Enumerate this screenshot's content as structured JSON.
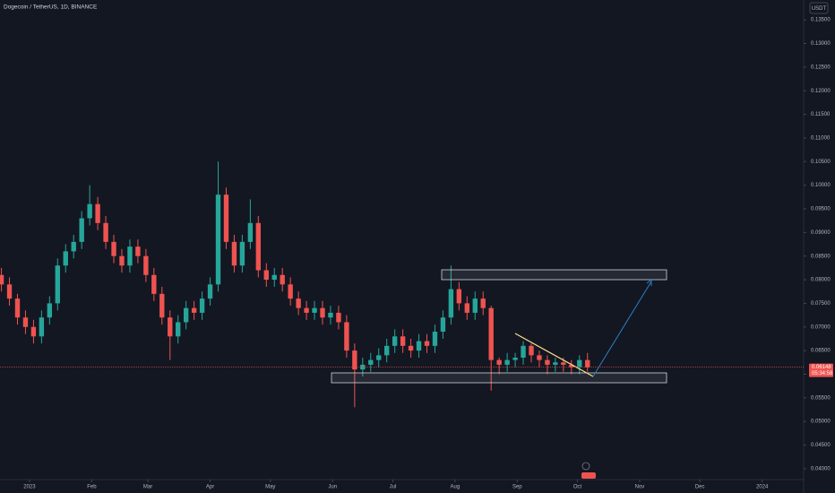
{
  "chart_data": {
    "type": "candlestick",
    "title": "Dogecoin / TetherUS, 1D, BINANCE",
    "currency": "USDT",
    "up_color": "#26a69a",
    "down_color": "#ef5350",
    "last_price": 0.06148,
    "countdown": "05:34:58",
    "x": [
      -14,
      -10,
      -6,
      -2,
      2,
      6,
      10,
      14,
      18,
      22,
      26,
      30,
      34,
      38,
      42,
      46,
      50,
      54,
      58,
      62,
      66,
      70,
      74,
      78,
      82,
      86,
      90,
      94,
      98,
      102,
      106,
      110,
      114,
      118,
      122,
      126,
      130,
      134,
      138,
      142,
      146,
      150,
      154,
      158,
      162,
      166,
      170,
      174,
      178,
      182,
      186,
      190,
      194,
      198,
      202,
      206,
      210,
      214,
      218,
      222,
      226,
      230,
      234,
      238,
      242,
      246,
      250,
      254,
      258,
      262,
      266,
      270,
      274,
      278
    ],
    "open": [
      0.081,
      0.079,
      0.076,
      0.072,
      0.07,
      0.068,
      0.072,
      0.075,
      0.083,
      0.086,
      0.088,
      0.093,
      0.096,
      0.092,
      0.088,
      0.085,
      0.083,
      0.087,
      0.085,
      0.081,
      0.077,
      0.072,
      0.068,
      0.071,
      0.074,
      0.073,
      0.076,
      0.079,
      0.098,
      0.088,
      0.083,
      0.088,
      0.092,
      0.082,
      0.08,
      0.081,
      0.079,
      0.076,
      0.074,
      0.073,
      0.074,
      0.072,
      0.073,
      0.071,
      0.065,
      0.061,
      0.062,
      0.063,
      0.064,
      0.066,
      0.068,
      0.066,
      0.065,
      0.067,
      0.066,
      0.069,
      0.072,
      0.078,
      0.075,
      0.073,
      0.076,
      0.074,
      0.063,
      0.062,
      0.063,
      0.0635,
      0.066,
      0.064,
      0.063,
      0.062,
      0.0625,
      0.062,
      0.0615,
      0.063
    ],
    "high": [
      0.0825,
      0.0805,
      0.077,
      0.0735,
      0.0715,
      0.0735,
      0.0765,
      0.0845,
      0.0875,
      0.0895,
      0.0945,
      0.1,
      0.0975,
      0.0935,
      0.0895,
      0.0865,
      0.0885,
      0.0885,
      0.0865,
      0.0825,
      0.0785,
      0.0735,
      0.0725,
      0.0755,
      0.0755,
      0.0775,
      0.0805,
      0.105,
      0.0995,
      0.0895,
      0.0895,
      0.097,
      0.0935,
      0.0835,
      0.0825,
      0.0825,
      0.0805,
      0.0775,
      0.0755,
      0.0755,
      0.0755,
      0.0745,
      0.0745,
      0.0725,
      0.0665,
      0.0635,
      0.0645,
      0.0655,
      0.0675,
      0.0695,
      0.0695,
      0.0675,
      0.0685,
      0.0685,
      0.0705,
      0.0735,
      0.083,
      0.0795,
      0.0765,
      0.0775,
      0.0775,
      0.0745,
      0.0635,
      0.0645,
      0.0645,
      0.067,
      0.0665,
      0.065,
      0.064,
      0.0635,
      0.0635,
      0.063,
      0.064,
      0.0645
    ],
    "low": [
      0.0775,
      0.0745,
      0.0705,
      0.0685,
      0.0665,
      0.0665,
      0.0705,
      0.0735,
      0.0815,
      0.0845,
      0.0865,
      0.0915,
      0.0905,
      0.0865,
      0.0835,
      0.0815,
      0.0815,
      0.0835,
      0.0795,
      0.0755,
      0.0705,
      0.063,
      0.0665,
      0.0695,
      0.0715,
      0.0715,
      0.0745,
      0.0775,
      0.0865,
      0.0815,
      0.0815,
      0.0865,
      0.0805,
      0.0785,
      0.0785,
      0.0775,
      0.0745,
      0.0725,
      0.0715,
      0.0715,
      0.0705,
      0.0705,
      0.0695,
      0.0635,
      0.053,
      0.0595,
      0.0605,
      0.0615,
      0.0625,
      0.0645,
      0.0645,
      0.0635,
      0.0635,
      0.0645,
      0.0645,
      0.0675,
      0.0705,
      0.0735,
      0.0715,
      0.0715,
      0.0725,
      0.0565,
      0.06,
      0.0605,
      0.0615,
      0.062,
      0.0625,
      0.0615,
      0.06,
      0.0605,
      0.0605,
      0.06,
      0.06,
      0.0605
    ],
    "close": [
      0.079,
      0.076,
      0.072,
      0.07,
      0.068,
      0.072,
      0.075,
      0.083,
      0.086,
      0.088,
      0.093,
      0.096,
      0.092,
      0.088,
      0.085,
      0.083,
      0.087,
      0.085,
      0.081,
      0.077,
      0.072,
      0.068,
      0.071,
      0.074,
      0.073,
      0.076,
      0.079,
      0.098,
      0.088,
      0.083,
      0.088,
      0.092,
      0.082,
      0.08,
      0.081,
      0.079,
      0.076,
      0.074,
      0.073,
      0.074,
      0.072,
      0.073,
      0.071,
      0.065,
      0.061,
      0.062,
      0.063,
      0.064,
      0.066,
      0.068,
      0.066,
      0.065,
      0.067,
      0.066,
      0.069,
      0.072,
      0.078,
      0.075,
      0.073,
      0.076,
      0.074,
      0.063,
      0.062,
      0.063,
      0.0635,
      0.066,
      0.064,
      0.063,
      0.062,
      0.0625,
      0.062,
      0.0615,
      0.063,
      0.06148
    ],
    "xlim": [
      -14.7,
      385.7
    ],
    "xticks": [
      {
        "value": 0,
        "label": "2023"
      },
      {
        "value": 31,
        "label": "Feb"
      },
      {
        "value": 59,
        "label": "Mar"
      },
      {
        "value": 90,
        "label": "Apr"
      },
      {
        "value": 120,
        "label": "May"
      },
      {
        "value": 151,
        "label": "Jun"
      },
      {
        "value": 181,
        "label": "Jul"
      },
      {
        "value": 212,
        "label": "Aug"
      },
      {
        "value": 243,
        "label": "Sep"
      },
      {
        "value": 273,
        "label": "Oct"
      },
      {
        "value": 304,
        "label": "Nov"
      },
      {
        "value": 334,
        "label": "Dec"
      },
      {
        "value": 365,
        "label": "2024"
      }
    ],
    "ylim": [
      0.0377,
      0.1392
    ],
    "yticks": [
      {
        "value": 0.04,
        "label": "0.04000"
      },
      {
        "value": 0.045,
        "label": "0.04500"
      },
      {
        "value": 0.05,
        "label": "0.05000"
      },
      {
        "value": 0.055,
        "label": "0.05500"
      },
      {
        "value": 0.06,
        "label": "0.06000"
      },
      {
        "value": 0.065,
        "label": "0.06500"
      },
      {
        "value": 0.07,
        "label": "0.07000"
      },
      {
        "value": 0.075,
        "label": "0.07500"
      },
      {
        "value": 0.08,
        "label": "0.08000"
      },
      {
        "value": 0.085,
        "label": "0.08500"
      },
      {
        "value": 0.09,
        "label": "0.09000"
      },
      {
        "value": 0.095,
        "label": "0.09500"
      },
      {
        "value": 0.1,
        "label": "0.10000"
      },
      {
        "value": 0.105,
        "label": "0.10500"
      },
      {
        "value": 0.11,
        "label": "0.11000"
      },
      {
        "value": 0.115,
        "label": "0.11500"
      },
      {
        "value": 0.12,
        "label": "0.12000"
      },
      {
        "value": 0.125,
        "label": "0.12500"
      },
      {
        "value": 0.13,
        "label": "0.13000"
      },
      {
        "value": 0.135,
        "label": "0.13500"
      }
    ]
  }
}
